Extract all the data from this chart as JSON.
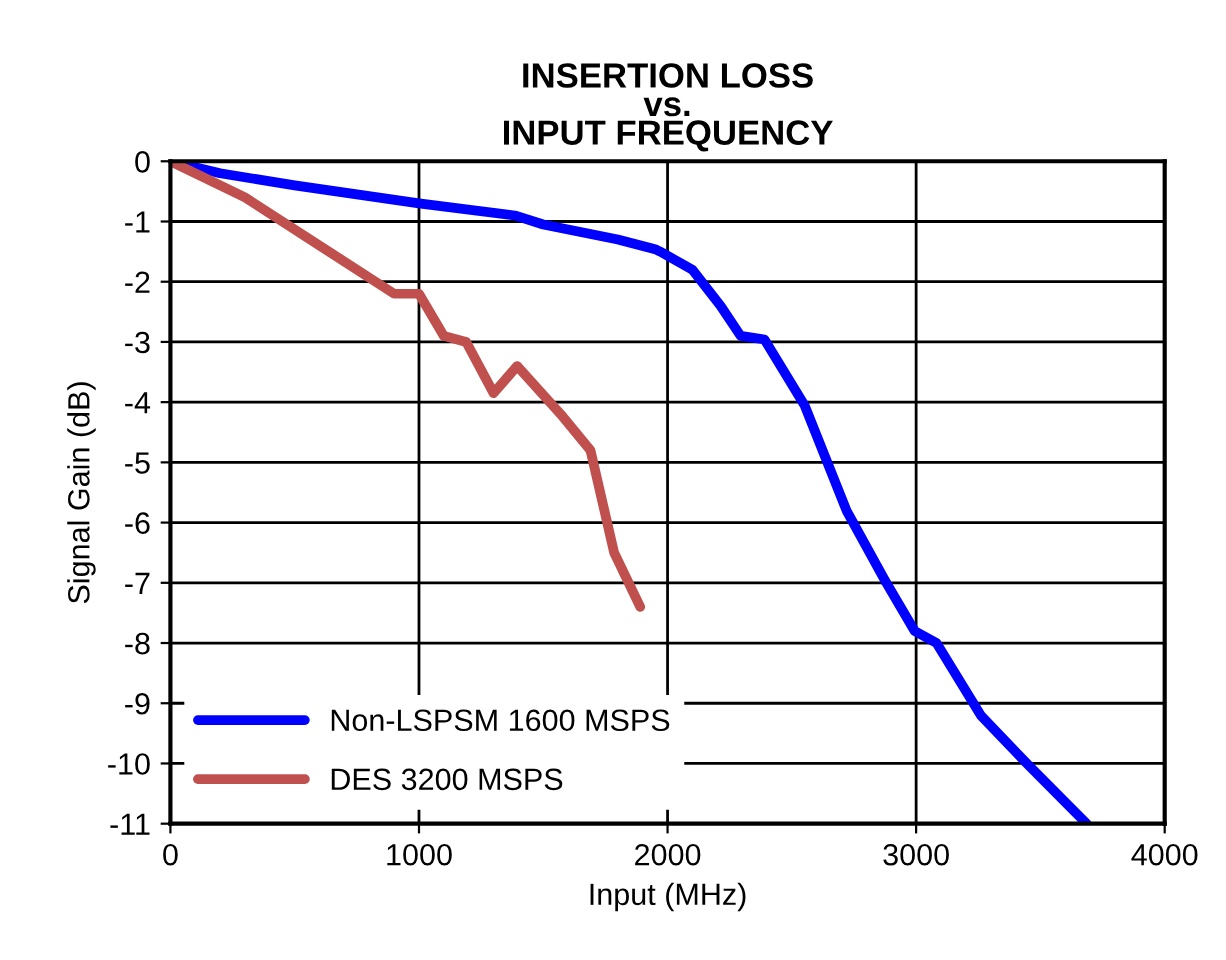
{
  "chart_data": {
    "type": "line",
    "title": "INSERTION LOSS\nvs.\nINPUT FREQUENCY",
    "xlabel": "Input (MHz)",
    "ylabel": "Signal Gain (dB)",
    "series": [
      {
        "name": "Non-LSPSM 1600 MSPS",
        "color": "#0000ff",
        "x": [
          0,
          200,
          500,
          1000,
          1385,
          1500,
          1800,
          1950,
          1970,
          2100,
          2213,
          2294,
          2390,
          2551,
          2720,
          2880,
          2994,
          3082,
          3260,
          3445,
          3686
        ],
        "values": [
          0,
          -0.2,
          -0.4,
          -0.7,
          -0.9,
          -1.05,
          -1.3,
          -1.46,
          -1.5,
          -1.8,
          -2.4,
          -2.9,
          -2.96,
          -4.05,
          -5.8,
          -7.0,
          -7.8,
          -8.0,
          -9.2,
          -10.0,
          -11.0
        ]
      },
      {
        "name": "DES 3200 MSPS",
        "color": "#c0504d",
        "x": [
          0,
          300,
          900,
          1000,
          1100,
          1190,
          1300,
          1395,
          1570,
          1690,
          1785,
          1890
        ],
        "values": [
          0,
          -0.6,
          -2.2,
          -2.2,
          -2.9,
          -3.0,
          -3.85,
          -3.4,
          -4.2,
          -4.8,
          -6.5,
          -7.4
        ]
      }
    ],
    "xlim": [
      0,
      4000
    ],
    "xticks": [
      0,
      1000,
      2000,
      3000,
      4000
    ],
    "ylim": [
      -11,
      0
    ],
    "yticks": [
      -11,
      -10,
      -9,
      -8,
      -7,
      -6,
      -5,
      -4,
      -3,
      -2,
      -1,
      0
    ],
    "grid": true,
    "legend": "bottom left",
    "marker": "none",
    "line_style": "solid"
  }
}
